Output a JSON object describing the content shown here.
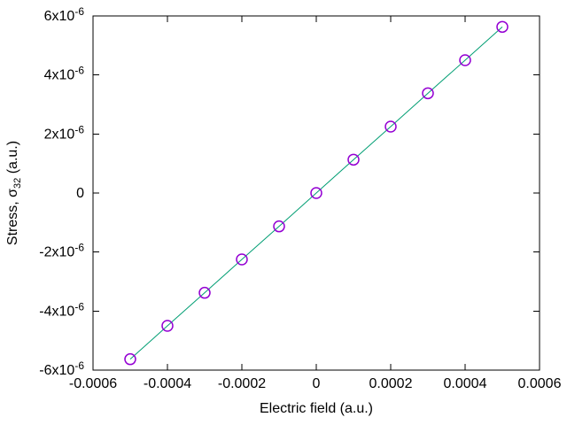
{
  "chart_data": {
    "type": "line",
    "title": "",
    "xlabel": "Electric field (a.u.)",
    "ylabel": "Stress, σ32 (a.u.)",
    "ylabel_parts": {
      "prefix": "Stress, σ",
      "sub": "32",
      "suffix": " (a.u.)"
    },
    "x": [
      -0.0005,
      -0.0004,
      -0.0003,
      -0.0002,
      -0.0001,
      0,
      0.0001,
      0.0002,
      0.0003,
      0.0004,
      0.0005
    ],
    "y": [
      -5.63e-06,
      -4.5e-06,
      -3.38e-06,
      -2.25e-06,
      -1.13e-06,
      0,
      1.13e-06,
      2.25e-06,
      3.38e-06,
      4.5e-06,
      5.63e-06
    ],
    "xlim": [
      -0.0006,
      0.0006
    ],
    "ylim": [
      -6e-06,
      6e-06
    ],
    "xticks": {
      "values": [
        -0.0006,
        -0.0004,
        -0.0002,
        0,
        0.0002,
        0.0004,
        0.0006
      ],
      "labels": [
        "-0.0006",
        "-0.0004",
        "-0.0002",
        "0",
        "0.0002",
        "0.0004",
        "0.0006"
      ]
    },
    "yticks": {
      "values": [
        6e-06,
        4e-06,
        2e-06,
        0,
        -2e-06,
        -4e-06,
        -6e-06
      ],
      "base": [
        "6x10",
        "4x10",
        "2x10",
        "0",
        "-2x10",
        "-4x10",
        "-6x10"
      ],
      "exp": [
        "-6",
        "-6",
        "-6",
        "",
        "-6",
        "-6",
        "-6"
      ]
    },
    "grid": false,
    "legend": null,
    "line_color": "#009e73",
    "marker": {
      "shape": "open-circle",
      "color": "#9400d3",
      "radius": 6
    },
    "axis_color": "#000000",
    "background": "#ffffff"
  }
}
